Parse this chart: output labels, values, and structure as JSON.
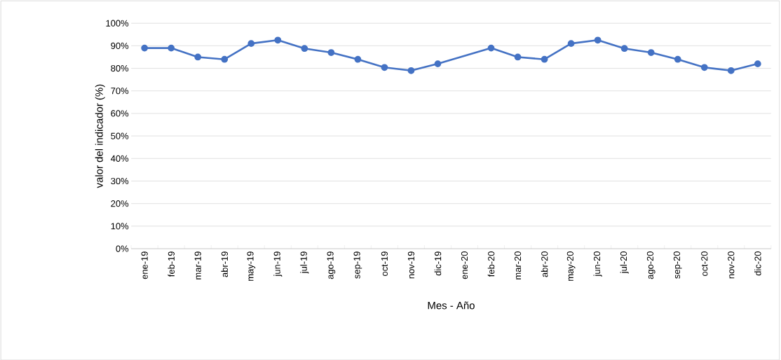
{
  "chart_data": {
    "type": "line",
    "xlabel": "Mes - Año",
    "ylabel": "valor del indicador (%)",
    "categories": [
      "ene-19",
      "feb-19",
      "mar-19",
      "abr-19",
      "may-19",
      "jun-19",
      "jul-19",
      "ago-19",
      "sep-19",
      "oct-19",
      "nov-19",
      "dic-19",
      "ene-20",
      "feb-20",
      "mar-20",
      "abr-20",
      "may-20",
      "jun-20",
      "jul-20",
      "ago-20",
      "sep-20",
      "oct-20",
      "nov-20",
      "dic-20"
    ],
    "series": [
      {
        "color": "#4472c4",
        "values": [
          89,
          89,
          85,
          84,
          91,
          92.5,
          88.8,
          87,
          84,
          80.4,
          79,
          82,
          null,
          89,
          85,
          84,
          91,
          92.5,
          88.8,
          87,
          84,
          80.4,
          79,
          82
        ]
      }
    ],
    "ylim": [
      0,
      100
    ],
    "yticks": [
      {
        "value": 0,
        "label": "0%"
      },
      {
        "value": 10,
        "label": "10%"
      },
      {
        "value": 20,
        "label": "20%"
      },
      {
        "value": 30,
        "label": "30%"
      },
      {
        "value": 40,
        "label": "40%"
      },
      {
        "value": 50,
        "label": "50%"
      },
      {
        "value": 60,
        "label": "60%"
      },
      {
        "value": 70,
        "label": "70%"
      },
      {
        "value": 80,
        "label": "80%"
      },
      {
        "value": 90,
        "label": "90%"
      },
      {
        "value": 100,
        "label": "100%"
      }
    ],
    "grid": "y",
    "marker": "circle",
    "line_style": "solid"
  }
}
